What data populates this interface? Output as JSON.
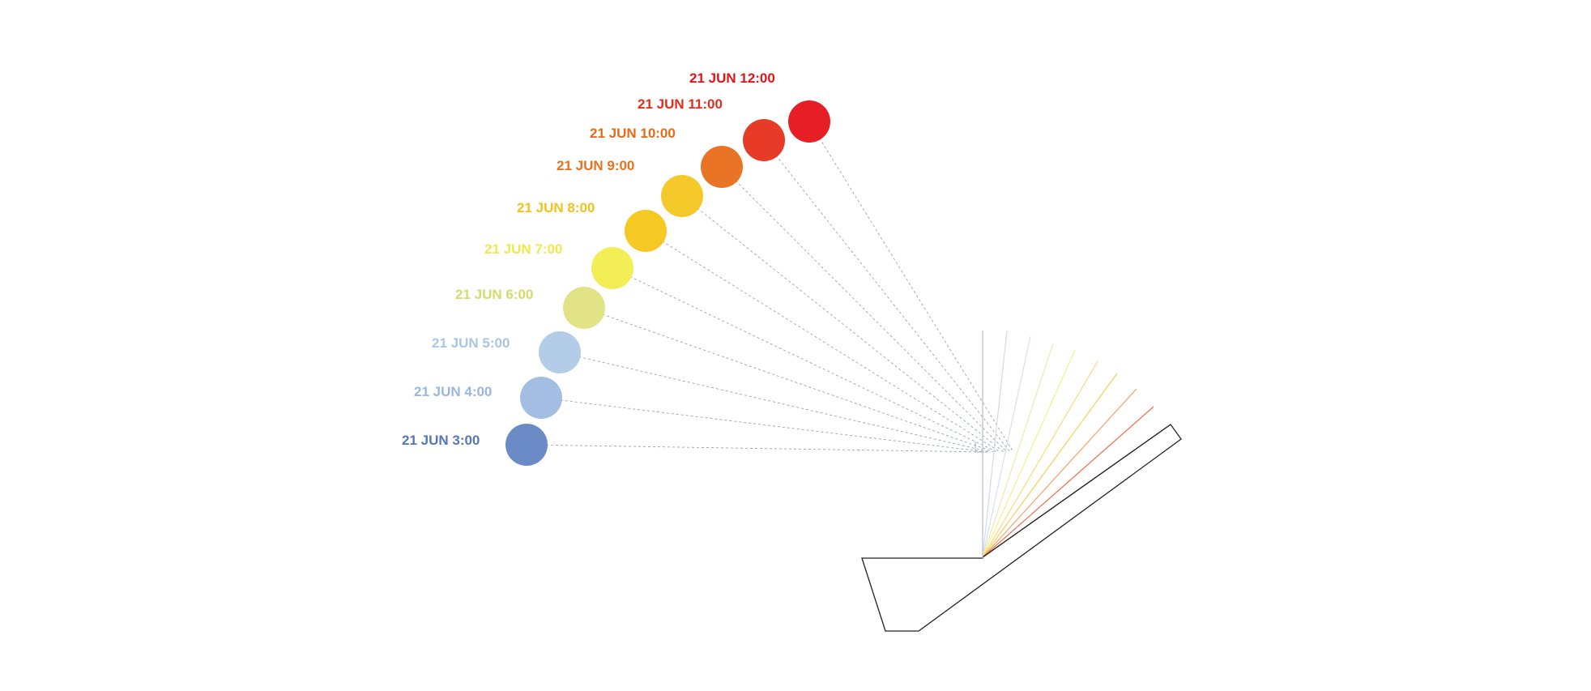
{
  "suns": [
    {
      "label": "21 JUN 3:00",
      "color": "#6a8bc6",
      "ray_color": "#c9d3e8"
    },
    {
      "label": "21 JUN 4:00",
      "color": "#a3bde3",
      "ray_color": "#cfdcf0"
    },
    {
      "label": "21 JUN 5:00",
      "color": "#b3cde9",
      "ray_color": "#d3e0f1"
    },
    {
      "label": "21 JUN 6:00",
      "color": "#e1e386",
      "ray_color": "#e9ecb0"
    },
    {
      "label": "21 JUN 7:00",
      "color": "#f3ee55",
      "ray_color": "#f5f08a"
    },
    {
      "label": "21 JUN 8:00",
      "color": "#f5c823",
      "ray_color": "#f7dc7a"
    },
    {
      "label": "21 JUN 9:00",
      "color": "#f6c92a",
      "ray_color": "#f6cf5a"
    },
    {
      "label": "21 JUN 10:00",
      "color": "#e97425",
      "ray_color": "#f0a46a"
    },
    {
      "label": "21 JUN 11:00",
      "color": "#e63b26",
      "ray_color": "#ee6d4c"
    },
    {
      "label": "21 JUN 12:00",
      "color": "#e61e25",
      "ray_color": "#a8311f"
    }
  ],
  "label_colors": [
    "#5577b3",
    "#98b7df",
    "#a7c6e4",
    "#d6da6a",
    "#f0e94a",
    "#efc21d",
    "#e6721e",
    "#e56b18",
    "#e22e1c",
    "#e0151c"
  ],
  "outline_color": "#222222",
  "guide_color": "#9aa3ad"
}
